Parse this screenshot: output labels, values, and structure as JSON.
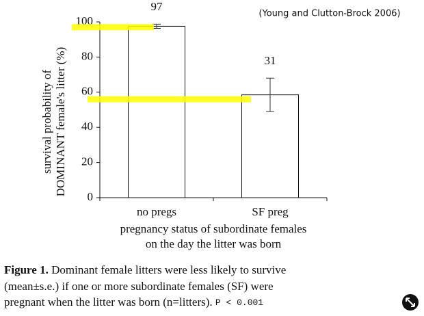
{
  "chart_data": {
    "type": "bar",
    "source": "(Young and Clutton-Brock 2006)",
    "y_label": [
      "survival probability of",
      "DOMINANT female's litter (%)"
    ],
    "x_label": [
      "pregnancy status of subordinate females",
      "on the day the litter was born"
    ],
    "categories": [
      "no pregs",
      "SF preg"
    ],
    "values": [
      97.5,
      58.5
    ],
    "errors": [
      1.2,
      9.5
    ],
    "sample_sizes": [
      97,
      31
    ],
    "color": "#ffffff",
    "ylim": [
      0,
      100
    ],
    "yticks": [
      0,
      20,
      40,
      60,
      80,
      100
    ],
    "highlights": {
      "color": "#ffff00",
      "values": [
        97,
        56
      ]
    }
  },
  "caption": {
    "label": "Figure 1.",
    "lines": [
      "Dominant female litters were less likely to survive",
      "(mean±s.e.) if one or more subordinate females (SF) were",
      "pregnant when the litter was born (n=litters)."
    ],
    "stat": "P < 0.001"
  }
}
